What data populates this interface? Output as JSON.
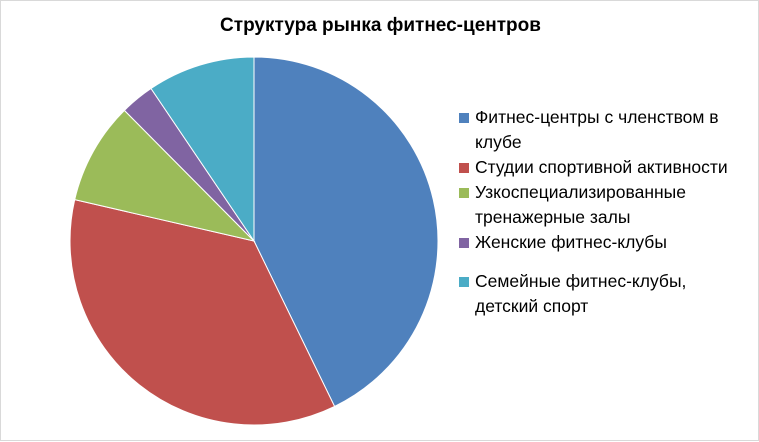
{
  "chart_data": {
    "type": "pie",
    "title": "Структура рынка фитнес-центров",
    "legend_position": "right",
    "start_angle_deg": 0,
    "direction": "clockwise",
    "slices": [
      {
        "label": "Фитнес-центры  с членством в клубе",
        "value": 43,
        "color": "#4f81bd"
      },
      {
        "label": "Студии спортивной активности",
        "value": 36,
        "color": "#c0504d"
      },
      {
        "label": "Узкоспециализированные тренажерные залы",
        "value": 9,
        "color": "#9bbb59"
      },
      {
        "label": "Женские фитнес-клубы",
        "value": 3,
        "color": "#8064a2"
      },
      {
        "label": "Семейные фитнес-клубы, детский спорт",
        "value": 9.5,
        "color": "#4bacc6"
      }
    ]
  }
}
